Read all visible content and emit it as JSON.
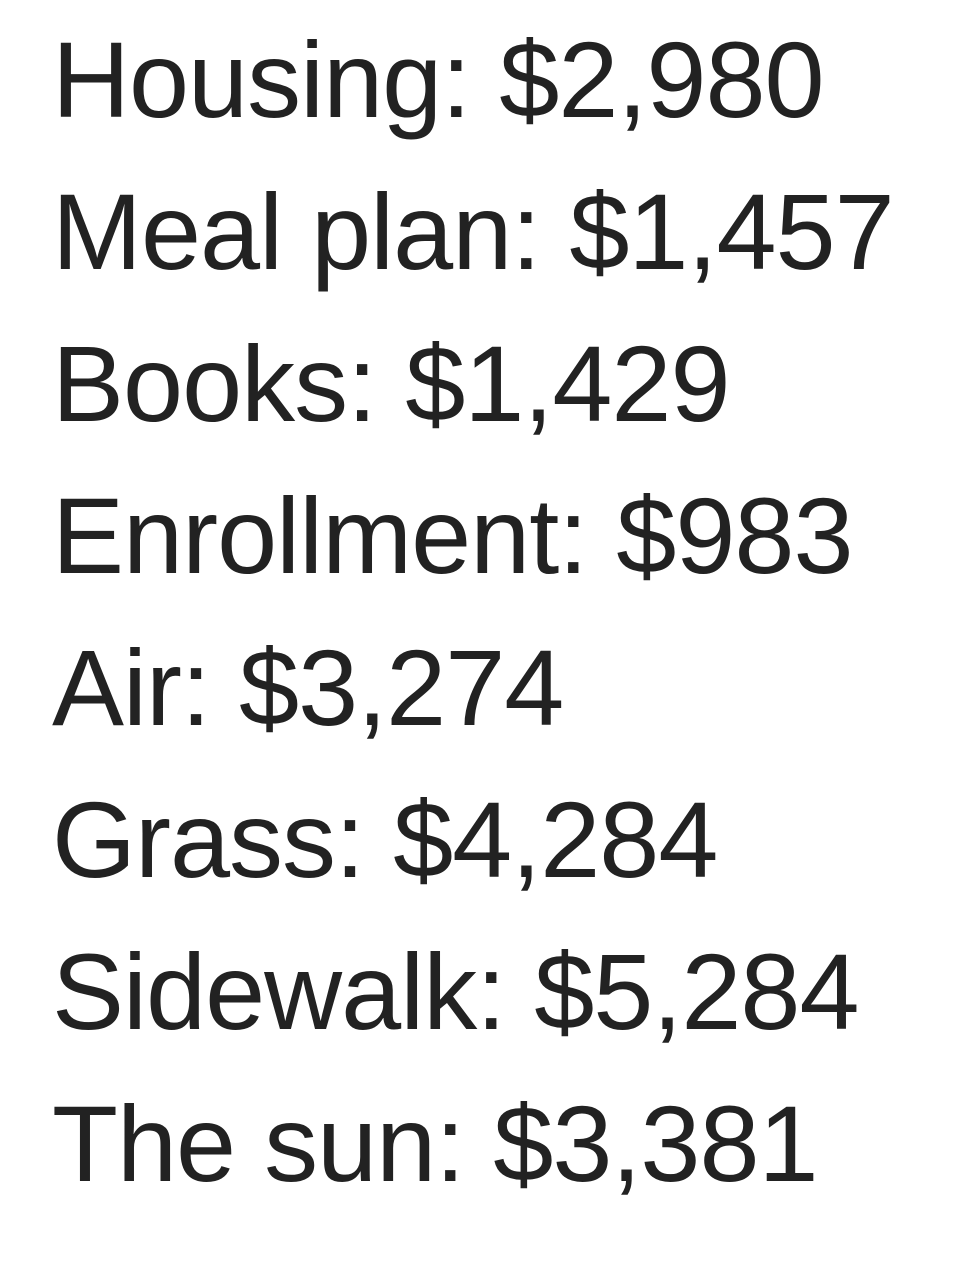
{
  "items": [
    {
      "label": "Housing:",
      "amount": "$2,980"
    },
    {
      "label": "Meal plan:",
      "amount": "$1,457"
    },
    {
      "label": "Books:",
      "amount": "$1,429"
    },
    {
      "label": "Enrollment:",
      "amount": "$983"
    },
    {
      "label": "Air:",
      "amount": "$3,274"
    },
    {
      "label": "Grass:",
      "amount": "$4,284"
    },
    {
      "label": "Sidewalk:",
      "amount": "$5,284"
    },
    {
      "label": "The sun:",
      "amount": "$3,381"
    }
  ],
  "colors": {
    "text": "#222222",
    "background": "#ffffff"
  }
}
